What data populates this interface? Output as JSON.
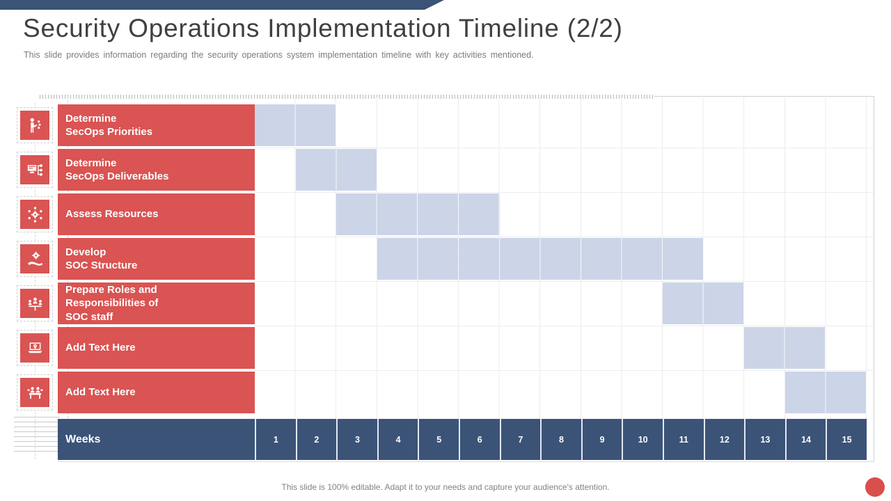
{
  "slide": {
    "title": "Security Operations Implementation Timeline (2/2)",
    "subtitle": "This slide provides information regarding the security operations system implementation timeline with key activities mentioned.",
    "footer": "This slide is 100% editable. Adapt it to your needs and capture your audience's attention."
  },
  "colors": {
    "accent_red": "#d95452",
    "navy": "#3b5377",
    "bar_blue": "#ccd4e8",
    "gridline": "#ececec"
  },
  "chart_data": {
    "type": "bar",
    "subtype": "gantt-timeline",
    "axis_label": "Weeks",
    "week_ticks": [
      "1",
      "2",
      "3",
      "4",
      "5",
      "6",
      "7",
      "8",
      "9",
      "10",
      "11",
      "12",
      "13",
      "14",
      "15"
    ],
    "xlim": [
      1,
      15
    ],
    "grid": true,
    "rows": [
      {
        "label": "Determine\nSecOps Priorities",
        "icon": "person-pointing-icon",
        "start_week": 1,
        "end_week": 2
      },
      {
        "label": "Determine\nSecOps Deliverables",
        "icon": "monitor-hierarchy-icon",
        "start_week": 2,
        "end_week": 3
      },
      {
        "label": "Assess Resources",
        "icon": "network-gear-icon",
        "start_week": 3,
        "end_week": 6
      },
      {
        "label": "Develop\nSOC Structure",
        "icon": "hand-gear-icon",
        "start_week": 4,
        "end_week": 11
      },
      {
        "label": "Prepare Roles and\nResponsibilities of\nSOC staff",
        "icon": "team-icon",
        "start_week": 11,
        "end_week": 12
      },
      {
        "label": "Add Text Here",
        "icon": "laptop-pin-icon",
        "start_week": 13,
        "end_week": 14
      },
      {
        "label": "Add Text Here",
        "icon": "meeting-icon",
        "start_week": 14,
        "end_week": 15
      }
    ]
  }
}
